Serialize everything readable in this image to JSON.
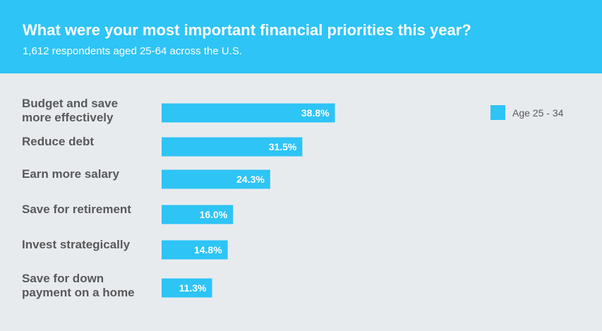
{
  "header": {
    "title": "What were your most important financial priorities this year?",
    "subtitle": "1,612 respondents aged 25-64 across the U.S."
  },
  "colors": {
    "header_bg": "#2ec4f5",
    "bar": "#2ec4f5",
    "background": "#e8ebee",
    "label_text": "#58595b"
  },
  "chart_data": {
    "type": "bar",
    "orientation": "horizontal",
    "title": "What were your most important financial priorities this year?",
    "subtitle": "1,612 respondents aged 25-64 across the U.S.",
    "categories": [
      [
        "Budget and save",
        "more effectively"
      ],
      [
        "Reduce debt"
      ],
      [
        "Earn more salary"
      ],
      [
        "Save for retirement"
      ],
      [
        "Invest strategically"
      ],
      [
        "Save for down",
        "payment on a home"
      ]
    ],
    "series": [
      {
        "name": "Age 25 - 34",
        "values": [
          38.8,
          31.5,
          24.3,
          16.0,
          14.8,
          11.3
        ],
        "value_labels": [
          "38.8%",
          "31.5%",
          "24.3%",
          "16.0%",
          "14.8%",
          "11.3%"
        ]
      }
    ],
    "xlim": [
      0,
      100
    ],
    "grid": false,
    "legend_position": "top-right"
  }
}
